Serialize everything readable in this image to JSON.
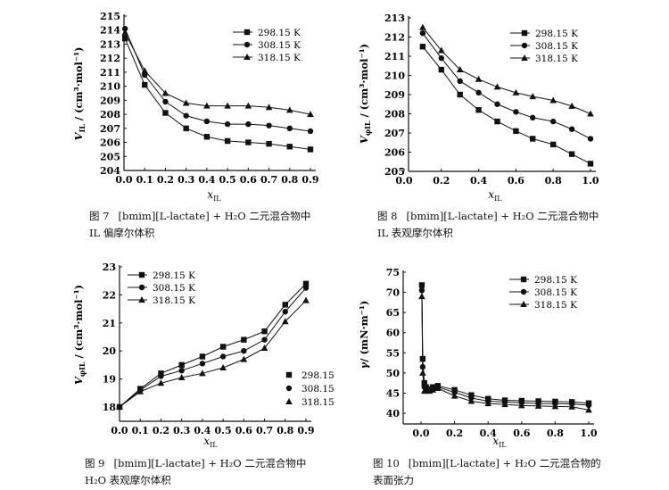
{
  "chart_data": [
    {
      "type": "line",
      "figure": "图 7",
      "caption_line1": "[bmim][L-lactate] + H₂O 二元混合物中",
      "caption_line2": "IL 偏摩尔体积",
      "xlabel": {
        "main": "x",
        "sub": "IL"
      },
      "ylabel": {
        "main": "V",
        "sub": "IL",
        "rest": " / (cm³·mol⁻¹)"
      },
      "xlim": [
        0,
        0.9
      ],
      "ylim": [
        204,
        215
      ],
      "xticks": [
        "0.0",
        "0.1",
        "0.2",
        "0.3",
        "0.4",
        "0.5",
        "0.6",
        "0.7",
        "0.8",
        "0.9"
      ],
      "yticks": [
        "204",
        "205",
        "206",
        "207",
        "208",
        "209",
        "210",
        "211",
        "212",
        "213",
        "214",
        "215"
      ],
      "legend": "top-right",
      "x": [
        0.005,
        0.1,
        0.2,
        0.3,
        0.4,
        0.5,
        0.6,
        0.7,
        0.8,
        0.9
      ],
      "series": [
        {
          "name": "298.15 K",
          "marker": "square",
          "values": [
            213.4,
            210.1,
            208.1,
            207.0,
            206.4,
            206.1,
            206.0,
            205.9,
            205.7,
            205.5
          ]
        },
        {
          "name": "308.15 K",
          "marker": "circle",
          "values": [
            214.1,
            210.8,
            208.9,
            207.9,
            207.5,
            207.3,
            207.3,
            207.2,
            207.0,
            206.8
          ]
        },
        {
          "name": "318.15 K",
          "marker": "triangle",
          "values": [
            213.8,
            211.1,
            209.5,
            208.8,
            208.6,
            208.6,
            208.6,
            208.5,
            208.3,
            208.0
          ]
        }
      ]
    },
    {
      "type": "line",
      "figure": "图 8",
      "caption_line1": "[bmim][L-lactate] + H₂O 二元混合物中",
      "caption_line2": "IL 表观摩尔体积",
      "xlabel": {
        "main": "x",
        "sub": "IL"
      },
      "ylabel": {
        "main": "V",
        "sub": "φIL",
        "rest": " / (cm³·mol⁻¹)"
      },
      "xlim": [
        0,
        1.0
      ],
      "ylim": [
        205,
        213
      ],
      "xticks": [
        "0.0",
        "0.2",
        "0.4",
        "0.6",
        "0.8",
        "1.0"
      ],
      "yticks": [
        "205",
        "206",
        "207",
        "208",
        "209",
        "210",
        "211",
        "212",
        "213"
      ],
      "legend": "top-right",
      "x": [
        0.1,
        0.2,
        0.3,
        0.4,
        0.5,
        0.6,
        0.69,
        0.8,
        0.9,
        1.0
      ],
      "series": [
        {
          "name": "298.15 K",
          "marker": "square",
          "values": [
            211.5,
            210.3,
            209.0,
            208.2,
            207.6,
            207.1,
            206.7,
            206.4,
            205.9,
            205.4
          ]
        },
        {
          "name": "308.15 K",
          "marker": "circle",
          "values": [
            212.2,
            210.9,
            209.7,
            209.1,
            208.5,
            208.1,
            207.8,
            207.6,
            207.2,
            206.7
          ]
        },
        {
          "name": "318.15 K",
          "marker": "triangle",
          "values": [
            212.5,
            211.3,
            210.3,
            209.8,
            209.4,
            209.1,
            208.9,
            208.7,
            208.4,
            208.0
          ]
        }
      ]
    },
    {
      "type": "line",
      "figure": "图 9",
      "caption_line1": "[bmim][L-lactate] + H₂O 二元混合物中",
      "caption_line2": "H₂O 表观摩尔体积",
      "xlabel": {
        "main": "x",
        "sub": "IL"
      },
      "ylabel": {
        "main": "V",
        "sub": "φIL",
        "rest": " / (cm³·mol⁻¹)"
      },
      "xlim": [
        0,
        0.9
      ],
      "ylim": [
        18,
        23
      ],
      "xticks": [
        "0.0",
        "0.1",
        "0.2",
        "0.3",
        "0.4",
        "0.5",
        "0.6",
        "0.7",
        "0.8",
        "0.9"
      ],
      "yticks": [
        "18",
        "19",
        "20",
        "21",
        "22",
        "23"
      ],
      "legend": "top-left",
      "legend2": [
        "298.15",
        "308.15",
        "318.15"
      ],
      "x": [
        0,
        0.1,
        0.2,
        0.3,
        0.4,
        0.5,
        0.6,
        0.7,
        0.8,
        0.9
      ],
      "series": [
        {
          "name": "298.15 K",
          "marker": "square",
          "values": [
            18.0,
            18.65,
            19.2,
            19.5,
            19.8,
            20.15,
            20.4,
            20.7,
            21.65,
            22.4
          ]
        },
        {
          "name": "308.15 K",
          "marker": "circle",
          "values": [
            18.0,
            18.6,
            19.1,
            19.3,
            19.55,
            19.8,
            20.0,
            20.4,
            21.4,
            22.25
          ]
        },
        {
          "name": "318.15 K",
          "marker": "triangle",
          "values": [
            18.0,
            18.55,
            18.85,
            19.05,
            19.2,
            19.4,
            19.7,
            20.1,
            21.05,
            21.8
          ]
        }
      ]
    },
    {
      "type": "line",
      "figure": "图 10",
      "caption_line1": "[bmim][L-lactate] + H₂O 二元混合物的",
      "caption_line2": "表面张力",
      "xlabel": {
        "main": "x",
        "sub": "IL"
      },
      "ylabel": {
        "main": "γ",
        "sub": "",
        "rest": "/ (mN·m⁻¹)"
      },
      "xlim": [
        0,
        1.0
      ],
      "ylim": [
        40,
        75
      ],
      "xticks": [
        "0.0",
        "0.2",
        "0.4",
        "0.6",
        "0.8",
        "1.0"
      ],
      "yticks": [
        "40",
        "45",
        "50",
        "55",
        "60",
        "65",
        "70",
        "75"
      ],
      "legend": "top-right",
      "x": [
        0.005,
        0.01,
        0.02,
        0.03,
        0.05,
        0.07,
        0.1,
        0.2,
        0.3,
        0.4,
        0.5,
        0.6,
        0.7,
        0.8,
        0.9,
        1.0
      ],
      "series": [
        {
          "name": "298.15 K",
          "marker": "square",
          "values": [
            71.8,
            53.5,
            47.5,
            46.5,
            46.0,
            46.5,
            46.8,
            45.8,
            44.5,
            43.6,
            43.2,
            43.1,
            43.0,
            42.9,
            42.8,
            42.5
          ]
        },
        {
          "name": "308.15 K",
          "marker": "circle",
          "values": [
            70.5,
            51.5,
            46.5,
            46.0,
            45.8,
            46.2,
            46.5,
            45.2,
            43.8,
            43.0,
            42.8,
            42.6,
            42.4,
            42.4,
            42.3,
            42.0
          ]
        },
        {
          "name": "318.15 K",
          "marker": "triangle",
          "values": [
            69.0,
            50.0,
            45.5,
            45.5,
            45.5,
            45.8,
            46.2,
            44.3,
            43.0,
            42.4,
            42.2,
            41.9,
            41.8,
            41.7,
            41.6,
            40.8
          ]
        }
      ]
    }
  ]
}
